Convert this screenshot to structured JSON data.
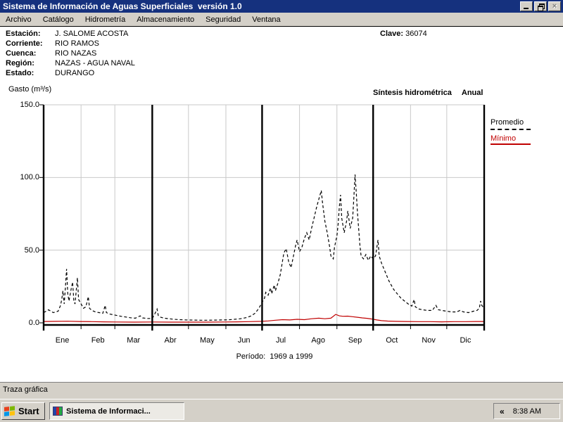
{
  "window": {
    "title": "Sistema de Información de Aguas Superficiales  versión 1.0"
  },
  "menu": {
    "items": [
      "Archivo",
      "Catálogo",
      "Hidrometría",
      "Almacenamiento",
      "Seguridad",
      "Ventana"
    ]
  },
  "station": {
    "fields": [
      {
        "label": "Estación:",
        "value": "J. SALOME ACOSTA"
      },
      {
        "label": "Corriente:",
        "value": "RIO RAMOS"
      },
      {
        "label": "Cuenca:",
        "value": "RIO NAZAS"
      },
      {
        "label": "Región:",
        "value": "NAZAS - AGUA NAVAL"
      },
      {
        "label": "Estado:",
        "value": "DURANGO"
      }
    ],
    "clave_label": "Clave:",
    "clave_value": "36074"
  },
  "chart_header": {
    "y_axis_label": "Gasto (m³/s)",
    "right_title": "Síntesis hidrométrica",
    "right_subtitle": "Anual"
  },
  "legend": {
    "items": [
      {
        "label": "Promedio",
        "color": "#000000",
        "style": "dashed"
      },
      {
        "label": "Mínimo",
        "color": "#C00000",
        "style": "solid"
      }
    ]
  },
  "chart_data": {
    "type": "line",
    "title": "Síntesis hidrométrica Anual",
    "ylabel": "Gasto (m³/s)",
    "ylim": [
      0,
      150
    ],
    "yticks": [
      0,
      50,
      100,
      150
    ],
    "ytick_labels": [
      "0.0",
      "50.0",
      "100.0",
      "150.0"
    ],
    "months": [
      "Ene",
      "Feb",
      "Mar",
      "Abr",
      "May",
      "Jun",
      "Jul",
      "Ago",
      "Sep",
      "Oct",
      "Nov",
      "Dic"
    ],
    "month_boundaries": [
      0,
      31,
      59,
      90,
      120,
      151,
      181,
      212,
      243,
      273,
      304,
      334,
      365
    ],
    "quarter_boundaries": [
      90,
      181,
      273,
      365
    ],
    "grid": true,
    "legend_position": "right",
    "period_label": "Período:  1969 a 1999",
    "series": [
      {
        "name": "Promedio",
        "color": "#000000",
        "style": "dashed",
        "points": [
          [
            0,
            7
          ],
          [
            2,
            8
          ],
          [
            4,
            9
          ],
          [
            6,
            8
          ],
          [
            8,
            7
          ],
          [
            10,
            7.5
          ],
          [
            12,
            8
          ],
          [
            14,
            12
          ],
          [
            15,
            16
          ],
          [
            16,
            22
          ],
          [
            17,
            13
          ],
          [
            18,
            24
          ],
          [
            19,
            37
          ],
          [
            20,
            20
          ],
          [
            21,
            15
          ],
          [
            23,
            24
          ],
          [
            24,
            28
          ],
          [
            25,
            15
          ],
          [
            26,
            13
          ],
          [
            27,
            22
          ],
          [
            28,
            31
          ],
          [
            29,
            16
          ],
          [
            31,
            13
          ],
          [
            33,
            10
          ],
          [
            35,
            11
          ],
          [
            37,
            18
          ],
          [
            38,
            10
          ],
          [
            40,
            8.5
          ],
          [
            43,
            7.5
          ],
          [
            46,
            7
          ],
          [
            49,
            6.5
          ],
          [
            51,
            12
          ],
          [
            52,
            7
          ],
          [
            55,
            6
          ],
          [
            58,
            5.5
          ],
          [
            61,
            5
          ],
          [
            64,
            4.5
          ],
          [
            68,
            4
          ],
          [
            72,
            3.5
          ],
          [
            76,
            3.2
          ],
          [
            80,
            4.8
          ],
          [
            82,
            3.4
          ],
          [
            86,
            3
          ],
          [
            90,
            3
          ],
          [
            92,
            6
          ],
          [
            94,
            9.5
          ],
          [
            95,
            5
          ],
          [
            97,
            3.8
          ],
          [
            100,
            3.2
          ],
          [
            104,
            2.8
          ],
          [
            108,
            2.4
          ],
          [
            113,
            2.2
          ],
          [
            118,
            2
          ],
          [
            124,
            1.9
          ],
          [
            130,
            1.8
          ],
          [
            136,
            1.8
          ],
          [
            142,
            1.9
          ],
          [
            148,
            2
          ],
          [
            153,
            2.1
          ],
          [
            158,
            2.4
          ],
          [
            163,
            2.8
          ],
          [
            168,
            3.6
          ],
          [
            172,
            4.8
          ],
          [
            175,
            6.5
          ],
          [
            177,
            8.5
          ],
          [
            179,
            11
          ],
          [
            181,
            14
          ],
          [
            183,
            17
          ],
          [
            184,
            21
          ],
          [
            186,
            19
          ],
          [
            188,
            24
          ],
          [
            189,
            20
          ],
          [
            191,
            26
          ],
          [
            192,
            22
          ],
          [
            194,
            27
          ],
          [
            196,
            33
          ],
          [
            197,
            38
          ],
          [
            199,
            48
          ],
          [
            201,
            51
          ],
          [
            203,
            42
          ],
          [
            205,
            38
          ],
          [
            207,
            46
          ],
          [
            209,
            54
          ],
          [
            210,
            57
          ],
          [
            212,
            49
          ],
          [
            214,
            52
          ],
          [
            216,
            58
          ],
          [
            218,
            62
          ],
          [
            220,
            57
          ],
          [
            222,
            65
          ],
          [
            224,
            72
          ],
          [
            226,
            79
          ],
          [
            228,
            85
          ],
          [
            230,
            91
          ],
          [
            231,
            83
          ],
          [
            233,
            70
          ],
          [
            235,
            62
          ],
          [
            237,
            52
          ],
          [
            238,
            46
          ],
          [
            240,
            44
          ],
          [
            241,
            52
          ],
          [
            243,
            60
          ],
          [
            244,
            68
          ],
          [
            245,
            80
          ],
          [
            246,
            88
          ],
          [
            247,
            72
          ],
          [
            249,
            62
          ],
          [
            251,
            70
          ],
          [
            252,
            77
          ],
          [
            254,
            65
          ],
          [
            256,
            72
          ],
          [
            257,
            86
          ],
          [
            258,
            102
          ],
          [
            259,
            90
          ],
          [
            260,
            76
          ],
          [
            262,
            54
          ],
          [
            263,
            46
          ],
          [
            265,
            44
          ],
          [
            267,
            47
          ],
          [
            269,
            43
          ],
          [
            271,
            46
          ],
          [
            273,
            44
          ],
          [
            275,
            46
          ],
          [
            277,
            57
          ],
          [
            278,
            46
          ],
          [
            280,
            41
          ],
          [
            282,
            37
          ],
          [
            284,
            33
          ],
          [
            286,
            29
          ],
          [
            288,
            26
          ],
          [
            290,
            23
          ],
          [
            293,
            20
          ],
          [
            296,
            17
          ],
          [
            299,
            15
          ],
          [
            302,
            13
          ],
          [
            305,
            11.5
          ],
          [
            307,
            16
          ],
          [
            308,
            11
          ],
          [
            311,
            9.5
          ],
          [
            314,
            9
          ],
          [
            318,
            8.5
          ],
          [
            322,
            8.5
          ],
          [
            325,
            12
          ],
          [
            327,
            9
          ],
          [
            330,
            8.5
          ],
          [
            334,
            8
          ],
          [
            338,
            7.5
          ],
          [
            342,
            7.5
          ],
          [
            345,
            8.5
          ],
          [
            348,
            7.5
          ],
          [
            352,
            7
          ],
          [
            356,
            8
          ],
          [
            359,
            8.5
          ],
          [
            361,
            10
          ],
          [
            362,
            15
          ],
          [
            363,
            12
          ],
          [
            365,
            10
          ]
        ]
      },
      {
        "name": "Mínimo",
        "color": "#C00000",
        "style": "solid",
        "points": [
          [
            0,
            0.9
          ],
          [
            10,
            1
          ],
          [
            20,
            1.1
          ],
          [
            30,
            0.9
          ],
          [
            40,
            0.8
          ],
          [
            50,
            0.7
          ],
          [
            60,
            0.6
          ],
          [
            75,
            0.5
          ],
          [
            90,
            0.6
          ],
          [
            105,
            0.5
          ],
          [
            120,
            0.5
          ],
          [
            135,
            0.5
          ],
          [
            150,
            0.6
          ],
          [
            160,
            0.7
          ],
          [
            170,
            0.8
          ],
          [
            180,
            1
          ],
          [
            186,
            1.3
          ],
          [
            192,
            1.8
          ],
          [
            198,
            2.2
          ],
          [
            204,
            2
          ],
          [
            210,
            2.4
          ],
          [
            216,
            2.2
          ],
          [
            222,
            2.8
          ],
          [
            228,
            3.2
          ],
          [
            233,
            2.8
          ],
          [
            238,
            3.2
          ],
          [
            242,
            5.8
          ],
          [
            245,
            4.8
          ],
          [
            248,
            4.5
          ],
          [
            252,
            4.6
          ],
          [
            256,
            4.2
          ],
          [
            260,
            3.8
          ],
          [
            264,
            3.4
          ],
          [
            268,
            3.1
          ],
          [
            272,
            2.6
          ],
          [
            276,
            2
          ],
          [
            280,
            1.5
          ],
          [
            285,
            1.2
          ],
          [
            292,
            1
          ],
          [
            300,
            0.9
          ],
          [
            310,
            0.8
          ],
          [
            320,
            0.8
          ],
          [
            330,
            0.7
          ],
          [
            340,
            0.8
          ],
          [
            350,
            0.8
          ],
          [
            358,
            0.9
          ],
          [
            365,
            0.9
          ]
        ]
      }
    ]
  },
  "status_bar": {
    "text": "Traza gráfica"
  },
  "taskbar": {
    "start_label": "Start",
    "task_label": "Sistema de Informaci...",
    "tray_chevron": "«",
    "clock": "8:38 AM"
  },
  "colors": {
    "titlebar": "#15317E",
    "chrome_gray": "#D4D0C8",
    "promedio": "#000000",
    "minimo": "#C00000",
    "gridline": "#C9C9C9"
  }
}
